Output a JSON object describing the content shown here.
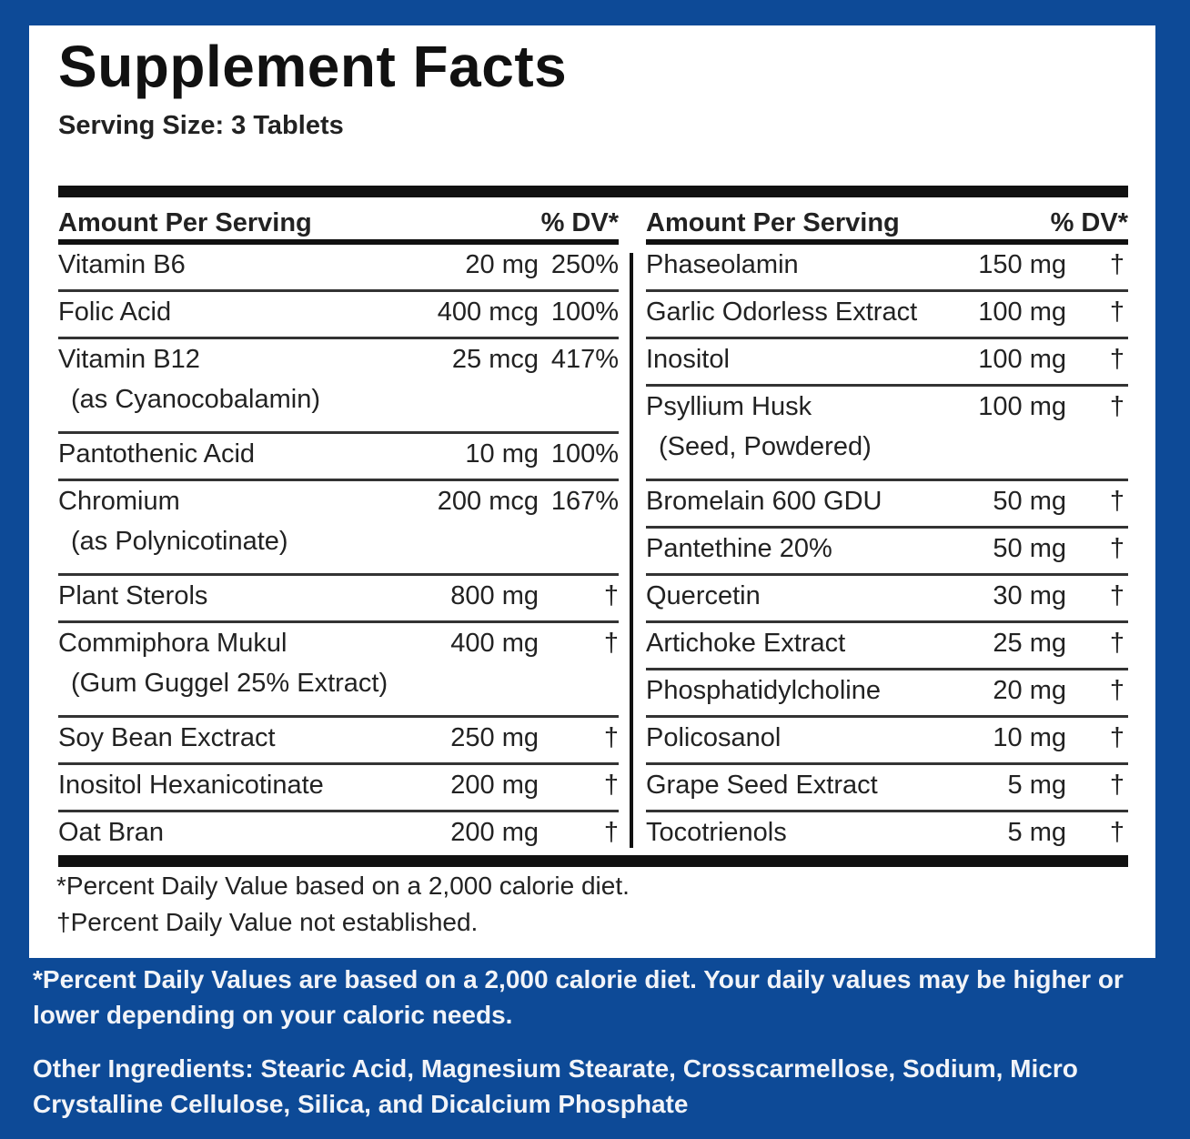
{
  "title": "Supplement Facts",
  "serving_size": "Serving Size: 3 Tablets",
  "left_column": {
    "header_amount": "Amount Per Serving",
    "header_dv": "% DV*",
    "rows": [
      {
        "name": "Vitamin B6",
        "sub": "",
        "amount": "20 mg",
        "dv": "250%"
      },
      {
        "name": "Folic Acid",
        "sub": "",
        "amount": "400 mcg",
        "dv": "100%"
      },
      {
        "name": "Vitamin B12",
        "sub": "(as Cyanocobalamin)",
        "amount": "25 mcg",
        "dv": "417%"
      },
      {
        "name": "Pantothenic Acid",
        "sub": "",
        "amount": "10 mg",
        "dv": "100%"
      },
      {
        "name": "Chromium",
        "sub": "(as Polynicotinate)",
        "amount": "200 mcg",
        "dv": "167%"
      },
      {
        "name": "Plant Sterols",
        "sub": "",
        "amount": "800 mg",
        "dv": "†"
      },
      {
        "name": "Commiphora Mukul",
        "sub": "(Gum Guggel 25% Extract)",
        "amount": "400 mg",
        "dv": "†"
      },
      {
        "name": "Soy Bean Exctract",
        "sub": "",
        "amount": "250 mg",
        "dv": "†"
      },
      {
        "name": "Inositol Hexanicotinate",
        "sub": "",
        "amount": "200 mg",
        "dv": "†"
      },
      {
        "name": "Oat Bran",
        "sub": "",
        "amount": "200 mg",
        "dv": "†"
      }
    ]
  },
  "right_column": {
    "header_amount": "Amount Per Serving",
    "header_dv": "% DV*",
    "rows": [
      {
        "name": "Phaseolamin",
        "sub": "",
        "amount": "150 mg",
        "dv": "†"
      },
      {
        "name": "Garlic Odorless Extract",
        "sub": "",
        "amount": "100 mg",
        "dv": "†"
      },
      {
        "name": "Inositol",
        "sub": "",
        "amount": "100 mg",
        "dv": "†"
      },
      {
        "name": "Psyllium Husk",
        "sub": "(Seed, Powdered)",
        "amount": "100 mg",
        "dv": "†"
      },
      {
        "name": "Bromelain 600 GDU",
        "sub": "",
        "amount": "50 mg",
        "dv": "†"
      },
      {
        "name": "Pantethine 20%",
        "sub": "",
        "amount": "50 mg",
        "dv": "†"
      },
      {
        "name": "Quercetin",
        "sub": "",
        "amount": "30 mg",
        "dv": "†"
      },
      {
        "name": "Artichoke Extract",
        "sub": "",
        "amount": "25 mg",
        "dv": "†"
      },
      {
        "name": "Phosphatidylcholine",
        "sub": "",
        "amount": "20 mg",
        "dv": "†"
      },
      {
        "name": "Policosanol",
        "sub": "",
        "amount": "10 mg",
        "dv": "†"
      },
      {
        "name": "Grape Seed Extract",
        "sub": "",
        "amount": "5 mg",
        "dv": "†"
      },
      {
        "name": "Tocotrienols",
        "sub": "",
        "amount": "5 mg",
        "dv": "†"
      }
    ]
  },
  "footnote_dv": "*Percent Daily Value based on a 2,000 calorie diet.",
  "footnote_dagger": "†Percent Daily Value not established.",
  "note": "*Percent Daily Values are based on a 2,000 calorie diet. Your daily values may be higher or lower depending on your caloric needs.",
  "other_ingredients": "Other Ingredients: Stearic Acid, Magnesium Stearate, Crosscarmellose, Sodium, Micro Crystalline Cellulose, Silica, and Dicalcium Phosphate",
  "colors": {
    "background": "#0d4a97",
    "panel": "#ffffff"
  }
}
